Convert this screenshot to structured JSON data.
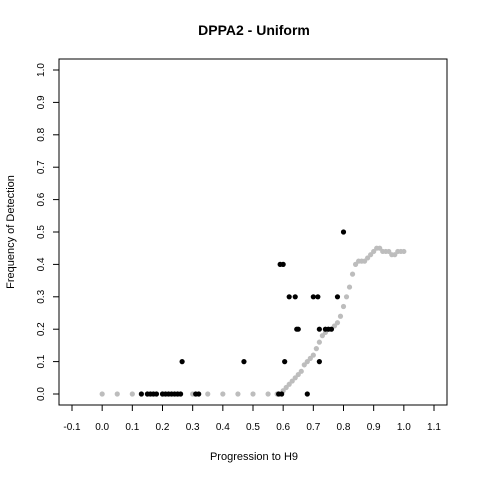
{
  "chart_data": {
    "type": "scatter",
    "title": "DPPA2 - Uniform",
    "xlabel": "Progression to H9",
    "ylabel": "Frequency of Detection",
    "xlim": [
      -0.1,
      1.1
    ],
    "ylim": [
      0.0,
      1.0
    ],
    "x_ticks": [
      "-0.1",
      "0.0",
      "0.1",
      "0.2",
      "0.3",
      "0.4",
      "0.5",
      "0.6",
      "0.7",
      "0.8",
      "0.9",
      "1.0",
      "1.1"
    ],
    "y_ticks": [
      "0.0",
      "0.1",
      "0.2",
      "0.3",
      "0.4",
      "0.5",
      "0.6",
      "0.7",
      "0.8",
      "0.9",
      "1.0"
    ],
    "grid": false,
    "series": [
      {
        "color": "#000000",
        "points": [
          [
            0.13,
            0.0
          ],
          [
            0.15,
            0.0
          ],
          [
            0.16,
            0.0
          ],
          [
            0.17,
            0.0
          ],
          [
            0.18,
            0.0
          ],
          [
            0.2,
            0.0
          ],
          [
            0.21,
            0.0
          ],
          [
            0.22,
            0.0
          ],
          [
            0.23,
            0.0
          ],
          [
            0.24,
            0.0
          ],
          [
            0.25,
            0.0
          ],
          [
            0.26,
            0.0
          ],
          [
            0.265,
            0.1
          ],
          [
            0.31,
            0.0
          ],
          [
            0.32,
            0.0
          ],
          [
            0.47,
            0.1
          ],
          [
            0.585,
            0.0
          ],
          [
            0.59,
            0.4
          ],
          [
            0.595,
            0.0
          ],
          [
            0.6,
            0.4
          ],
          [
            0.605,
            0.1
          ],
          [
            0.62,
            0.3
          ],
          [
            0.64,
            0.3
          ],
          [
            0.645,
            0.2
          ],
          [
            0.65,
            0.2
          ],
          [
            0.68,
            0.0
          ],
          [
            0.7,
            0.3
          ],
          [
            0.715,
            0.3
          ],
          [
            0.72,
            0.2
          ],
          [
            0.72,
            0.1
          ],
          [
            0.74,
            0.2
          ],
          [
            0.75,
            0.2
          ],
          [
            0.76,
            0.2
          ],
          [
            0.78,
            0.3
          ],
          [
            0.8,
            0.5
          ]
        ]
      },
      {
        "color": "#bdbdbd",
        "points": [
          [
            0.0,
            0.0
          ],
          [
            0.05,
            0.0
          ],
          [
            0.1,
            0.0
          ],
          [
            0.15,
            0.0
          ],
          [
            0.2,
            0.0
          ],
          [
            0.25,
            0.0
          ],
          [
            0.3,
            0.0
          ],
          [
            0.35,
            0.0
          ],
          [
            0.4,
            0.0
          ],
          [
            0.45,
            0.0
          ],
          [
            0.5,
            0.0
          ],
          [
            0.55,
            0.0
          ],
          [
            0.58,
            0.0
          ],
          [
            0.6,
            0.01
          ],
          [
            0.61,
            0.02
          ],
          [
            0.62,
            0.03
          ],
          [
            0.63,
            0.04
          ],
          [
            0.64,
            0.05
          ],
          [
            0.65,
            0.06
          ],
          [
            0.66,
            0.07
          ],
          [
            0.67,
            0.09
          ],
          [
            0.68,
            0.1
          ],
          [
            0.69,
            0.11
          ],
          [
            0.7,
            0.12
          ],
          [
            0.71,
            0.14
          ],
          [
            0.72,
            0.16
          ],
          [
            0.73,
            0.18
          ],
          [
            0.74,
            0.19
          ],
          [
            0.75,
            0.2
          ],
          [
            0.76,
            0.2
          ],
          [
            0.77,
            0.21
          ],
          [
            0.78,
            0.22
          ],
          [
            0.79,
            0.24
          ],
          [
            0.8,
            0.27
          ],
          [
            0.81,
            0.3
          ],
          [
            0.82,
            0.33
          ],
          [
            0.83,
            0.37
          ],
          [
            0.84,
            0.4
          ],
          [
            0.85,
            0.41
          ],
          [
            0.86,
            0.41
          ],
          [
            0.87,
            0.41
          ],
          [
            0.88,
            0.42
          ],
          [
            0.89,
            0.43
          ],
          [
            0.9,
            0.44
          ],
          [
            0.91,
            0.45
          ],
          [
            0.92,
            0.45
          ],
          [
            0.93,
            0.44
          ],
          [
            0.94,
            0.44
          ],
          [
            0.95,
            0.44
          ],
          [
            0.96,
            0.43
          ],
          [
            0.97,
            0.43
          ],
          [
            0.98,
            0.44
          ],
          [
            0.99,
            0.44
          ],
          [
            1.0,
            0.44
          ]
        ]
      }
    ]
  }
}
